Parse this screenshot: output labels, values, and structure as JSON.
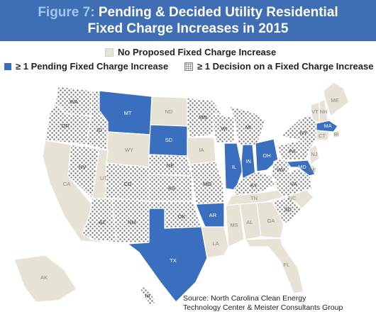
{
  "figure": {
    "label": "Figure 7:",
    "title_line1": "Pending & Decided Utility Residential",
    "title_line2": "Fixed Charge Increases in 2015"
  },
  "legend": {
    "none": "No Proposed Fixed Charge Increase",
    "pending": "≥ 1 Pending Fixed Charge Increase",
    "decision": "≥ 1 Decision on a Fixed Charge Increase"
  },
  "colors": {
    "banner": "#3f6eb5",
    "none": "#e6e3d6",
    "pending": "#3a6fbf",
    "decision_dots": "#7b7b7b"
  },
  "states": [
    {
      "abbr": "WA",
      "status": "decision"
    },
    {
      "abbr": "OR",
      "status": "decision"
    },
    {
      "abbr": "CA",
      "status": "none"
    },
    {
      "abbr": "NV",
      "status": "decision"
    },
    {
      "abbr": "ID",
      "status": "decision"
    },
    {
      "abbr": "MT",
      "status": "pending"
    },
    {
      "abbr": "WY",
      "status": "none"
    },
    {
      "abbr": "UT",
      "status": "none"
    },
    {
      "abbr": "AZ",
      "status": "decision"
    },
    {
      "abbr": "CO",
      "status": "decision"
    },
    {
      "abbr": "NM",
      "status": "decision"
    },
    {
      "abbr": "ND",
      "status": "none"
    },
    {
      "abbr": "SD",
      "status": "pending"
    },
    {
      "abbr": "NE",
      "status": "decision"
    },
    {
      "abbr": "KS",
      "status": "decision"
    },
    {
      "abbr": "OK",
      "status": "decision"
    },
    {
      "abbr": "TX",
      "status": "pending"
    },
    {
      "abbr": "MN",
      "status": "decision"
    },
    {
      "abbr": "IA",
      "status": "none"
    },
    {
      "abbr": "MO",
      "status": "decision"
    },
    {
      "abbr": "AR",
      "status": "pending"
    },
    {
      "abbr": "LA",
      "status": "none"
    },
    {
      "abbr": "WI",
      "status": "decision"
    },
    {
      "abbr": "IL",
      "status": "pending"
    },
    {
      "abbr": "MI",
      "status": "decision"
    },
    {
      "abbr": "IN",
      "status": "pending"
    },
    {
      "abbr": "OH",
      "status": "pending"
    },
    {
      "abbr": "KY",
      "status": "decision"
    },
    {
      "abbr": "TN",
      "status": "none"
    },
    {
      "abbr": "MS",
      "status": "none"
    },
    {
      "abbr": "AL",
      "status": "none"
    },
    {
      "abbr": "GA",
      "status": "none"
    },
    {
      "abbr": "FL",
      "status": "none"
    },
    {
      "abbr": "SC",
      "status": "decision"
    },
    {
      "abbr": "NC",
      "status": "none"
    },
    {
      "abbr": "VA",
      "status": "decision"
    },
    {
      "abbr": "WV",
      "status": "decision"
    },
    {
      "abbr": "PA",
      "status": "decision"
    },
    {
      "abbr": "NY",
      "status": "decision"
    },
    {
      "abbr": "VT",
      "status": "none"
    },
    {
      "abbr": "NH",
      "status": "none"
    },
    {
      "abbr": "ME",
      "status": "none"
    },
    {
      "abbr": "MA",
      "status": "pending"
    },
    {
      "abbr": "RI",
      "status": "none"
    },
    {
      "abbr": "CT",
      "status": "none"
    },
    {
      "abbr": "NJ",
      "status": "none"
    },
    {
      "abbr": "DE",
      "status": "none"
    },
    {
      "abbr": "MD",
      "status": "pending"
    },
    {
      "abbr": "AK",
      "status": "none"
    },
    {
      "abbr": "HI",
      "status": "decision"
    }
  ],
  "source": {
    "line1": "Source: North Carolina Clean Energy",
    "line2": "Technology Center & Meister Consultants Group"
  }
}
